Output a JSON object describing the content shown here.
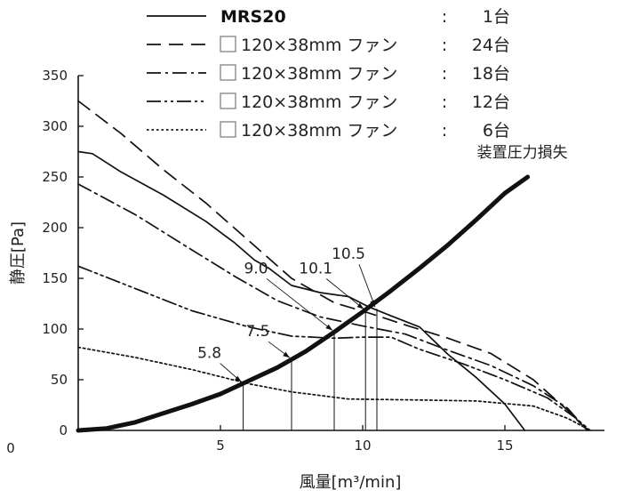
{
  "chart_data": {
    "type": "line",
    "title": "",
    "xlabel": "風量[m³/min]",
    "ylabel": "静圧[Pa]",
    "xlim": [
      0,
      18.5
    ],
    "ylim": [
      0,
      350
    ],
    "xticks": [
      5,
      10,
      15
    ],
    "yticks": [
      0,
      50,
      100,
      150,
      200,
      250,
      300,
      350
    ],
    "grid": false,
    "legend_position": "top",
    "legend": [
      {
        "name": "MRS20",
        "sep": ":",
        "count": "1台",
        "style": "solid",
        "bold": true,
        "box": false
      },
      {
        "name": "120×38mm ファン",
        "sep": ":",
        "count": "24台",
        "style": "dash",
        "bold": false,
        "box": true
      },
      {
        "name": "120×38mm ファン",
        "sep": ":",
        "count": "18台",
        "style": "dashdot",
        "bold": false,
        "box": true
      },
      {
        "name": "120×38mm ファン",
        "sep": ":",
        "count": "12台",
        "style": "dashdotdot",
        "bold": false,
        "box": true
      },
      {
        "name": "120×38mm ファン",
        "sep": ":",
        "count": "6台",
        "style": "dotted",
        "bold": false,
        "box": true
      }
    ],
    "series": [
      {
        "legend_index": 0,
        "style": "solid",
        "points": [
          [
            0,
            275
          ],
          [
            0.5,
            273
          ],
          [
            1.5,
            255
          ],
          [
            3,
            232
          ],
          [
            4.5,
            206
          ],
          [
            5.5,
            185
          ],
          [
            6.2,
            168
          ],
          [
            6.7,
            160
          ],
          [
            7.5,
            143
          ],
          [
            8.5,
            136
          ],
          [
            9.5,
            132
          ],
          [
            10.2,
            122
          ],
          [
            11,
            113
          ],
          [
            12,
            102
          ],
          [
            13,
            75
          ],
          [
            14,
            52
          ],
          [
            15,
            26
          ],
          [
            15.7,
            0
          ]
        ]
      },
      {
        "legend_index": 1,
        "style": "dash",
        "points": [
          [
            0,
            325
          ],
          [
            1.5,
            293
          ],
          [
            3,
            257
          ],
          [
            4.5,
            224
          ],
          [
            6,
            187
          ],
          [
            7.5,
            150
          ],
          [
            9,
            126
          ],
          [
            10.2,
            116
          ],
          [
            11.5,
            104
          ],
          [
            13,
            91
          ],
          [
            14.5,
            76
          ],
          [
            16,
            50
          ],
          [
            17.2,
            20
          ],
          [
            17.9,
            0
          ]
        ]
      },
      {
        "legend_index": 2,
        "style": "dashdot",
        "points": [
          [
            0,
            243
          ],
          [
            2,
            213
          ],
          [
            4,
            178
          ],
          [
            5.5,
            152
          ],
          [
            7,
            128
          ],
          [
            8.5,
            112
          ],
          [
            10,
            103
          ],
          [
            11.5,
            95
          ],
          [
            13,
            79
          ],
          [
            14.5,
            64
          ],
          [
            16,
            44
          ],
          [
            17.2,
            22
          ],
          [
            17.9,
            0
          ]
        ]
      },
      {
        "legend_index": 3,
        "style": "dashdotdot",
        "points": [
          [
            0,
            162
          ],
          [
            2,
            140
          ],
          [
            4,
            118
          ],
          [
            6,
            102
          ],
          [
            7.5,
            93
          ],
          [
            9,
            91
          ],
          [
            10,
            92
          ],
          [
            11,
            92
          ],
          [
            12,
            80
          ],
          [
            13.5,
            66
          ],
          [
            15,
            50
          ],
          [
            16.5,
            32
          ],
          [
            17.5,
            12
          ],
          [
            18,
            0
          ]
        ]
      },
      {
        "legend_index": 4,
        "style": "dotted",
        "points": [
          [
            0,
            82
          ],
          [
            2,
            72
          ],
          [
            4,
            60
          ],
          [
            6,
            46
          ],
          [
            7.5,
            38
          ],
          [
            9.5,
            31
          ],
          [
            12,
            30
          ],
          [
            14,
            29
          ],
          [
            16,
            24
          ],
          [
            17.2,
            12
          ],
          [
            18,
            0
          ]
        ]
      },
      {
        "name": "装置圧力損失",
        "style": "thick",
        "points": [
          [
            0,
            0
          ],
          [
            1,
            2
          ],
          [
            2,
            8
          ],
          [
            3,
            17
          ],
          [
            4,
            26
          ],
          [
            5,
            36
          ],
          [
            6,
            49
          ],
          [
            7,
            62
          ],
          [
            8,
            78
          ],
          [
            9,
            97
          ],
          [
            10,
            117
          ],
          [
            11,
            138
          ],
          [
            12,
            160
          ],
          [
            13,
            183
          ],
          [
            14,
            208
          ],
          [
            15,
            234
          ],
          [
            15.8,
            250
          ]
        ]
      }
    ],
    "annotations": [
      {
        "text": "装置圧力損失",
        "x": 15.8,
        "y": 250,
        "kind": "curve_label"
      },
      {
        "text": "5.8",
        "x": 5.8,
        "y": 46
      },
      {
        "text": "7.5",
        "x": 7.5,
        "y": 70
      },
      {
        "text": "9.0",
        "x": 9.0,
        "y": 97
      },
      {
        "text": "10.1",
        "x": 10.1,
        "y": 118
      },
      {
        "text": "10.5",
        "x": 10.5,
        "y": 120
      }
    ]
  }
}
